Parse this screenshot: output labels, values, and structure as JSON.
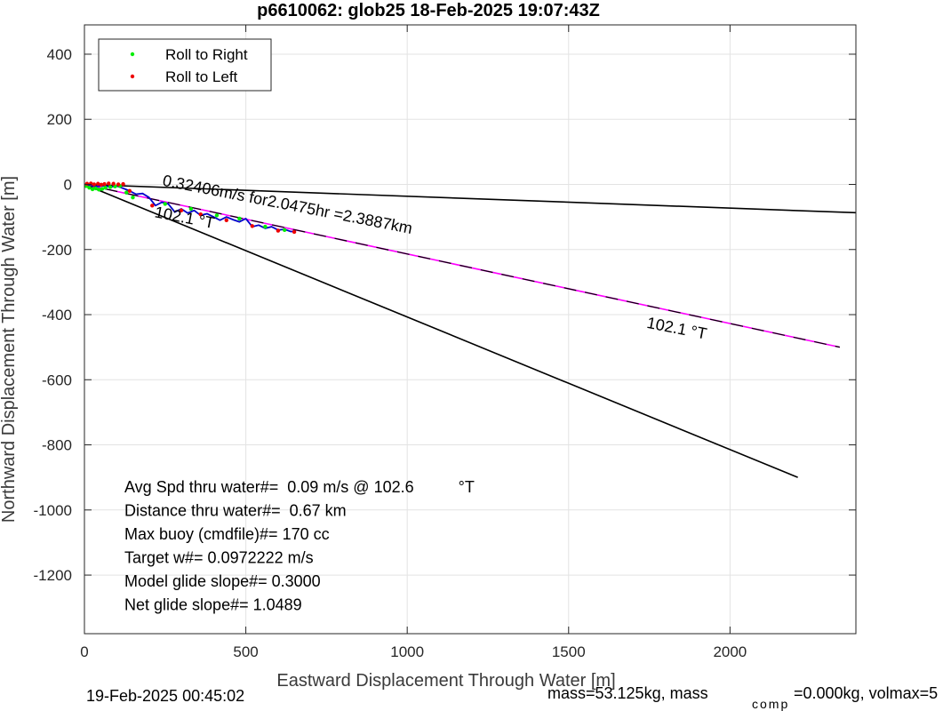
{
  "chart_data": {
    "type": "line",
    "title": "p6610062: glob25 18-Feb-2025 19:07:43Z",
    "xlabel": "Eastward Displacement Through Water [m]",
    "ylabel": "Northward Displacement Through Water [m]",
    "xlim": [
      0,
      2390
    ],
    "ylim": [
      -1380,
      490
    ],
    "xticks": [
      0,
      500,
      1000,
      1500,
      2000
    ],
    "xtick_labels": [
      "0",
      "500",
      "1000",
      "1500",
      "2000"
    ],
    "yticks": [
      400,
      200,
      0,
      -200,
      -400,
      -600,
      -800,
      -1000,
      -1200
    ],
    "ytick_labels": [
      "400",
      "200",
      "0",
      "-200",
      "-400",
      "-600",
      "-800",
      "-1000",
      "-1200"
    ],
    "grid": true,
    "legend_position": "top-left",
    "legend": [
      {
        "label": "Roll to Right",
        "color": "#00ee00"
      },
      {
        "label": "Roll to Left",
        "color": "#ee0000"
      }
    ],
    "lines": [
      {
        "color": "#000000",
        "x": [
          0,
          2390
        ],
        "y": [
          0,
          -87
        ]
      },
      {
        "color": "#000000",
        "x": [
          0,
          2210
        ],
        "y": [
          0,
          -900
        ]
      },
      {
        "color": "#ff00ff",
        "x": [
          0,
          2340
        ],
        "y": [
          0,
          -500
        ]
      },
      {
        "color": "#000000",
        "dashed": true,
        "x": [
          0,
          2340
        ],
        "y": [
          0,
          -500
        ]
      }
    ],
    "track": {
      "color": "#0000cc",
      "x": [
        0,
        20,
        40,
        60,
        80,
        100,
        120,
        140,
        160,
        180,
        200,
        220,
        240,
        260,
        280,
        300,
        320,
        340,
        360,
        380,
        400,
        420,
        440,
        460,
        480,
        500,
        520,
        540,
        560,
        580,
        600,
        620,
        640,
        655
      ],
      "y": [
        0,
        -3,
        -6,
        -4,
        -8,
        -5,
        -12,
        -20,
        -30,
        -28,
        -40,
        -65,
        -55,
        -60,
        -85,
        -75,
        -88,
        -80,
        -95,
        -90,
        -100,
        -110,
        -100,
        -108,
        -115,
        -105,
        -130,
        -125,
        -135,
        -130,
        -140,
        -138,
        -145,
        -143
      ]
    },
    "roll_right_points": {
      "x": [
        5,
        15,
        25,
        35,
        45,
        55,
        65,
        80,
        95,
        110,
        130,
        150,
        250,
        330,
        410,
        480,
        560,
        620
      ],
      "y": [
        -5,
        -10,
        -15,
        -12,
        -16,
        -14,
        -10,
        -8,
        -6,
        -5,
        -25,
        -40,
        -60,
        -75,
        -95,
        -105,
        -130,
        -140
      ]
    },
    "roll_left_points": {
      "x": [
        8,
        20,
        30,
        42,
        52,
        62,
        75,
        90,
        105,
        120,
        140,
        210,
        300,
        360,
        440,
        520,
        600,
        650
      ],
      "y": [
        2,
        3,
        0,
        2,
        -1,
        1,
        3,
        2,
        0,
        1,
        -20,
        -65,
        -80,
        -92,
        -110,
        -128,
        -142,
        -146
      ]
    },
    "annotations": [
      {
        "text": "0.32406m/s for2.0475hr =2.3887km",
        "x": 240,
        "y": -3,
        "rotation_deg": 11
      },
      {
        "text": "102.1  °T",
        "x": 215,
        "y": -100,
        "rotation_deg": 11
      },
      {
        "text": "102.1  °T",
        "x": 1740,
        "y": -440,
        "rotation_deg": 11
      }
    ],
    "stats": [
      "Avg Spd thru water#=  0.09 m/s @ 102.6          °T",
      "Distance thru water#=  0.67 km",
      "Max buoy (cmdfile)#= 170 cc",
      "Target w#= 0.0972222 m/s",
      "Model glide slope#= 0.3000",
      "Net glide slope#= 1.0489"
    ],
    "footer": {
      "left": "19-Feb-2025 00:45:02",
      "right_prefix": "mass=53.125kg, mass",
      "right_subscript": "comp",
      "right_suffix": "=0.000kg, volmax=5"
    }
  }
}
